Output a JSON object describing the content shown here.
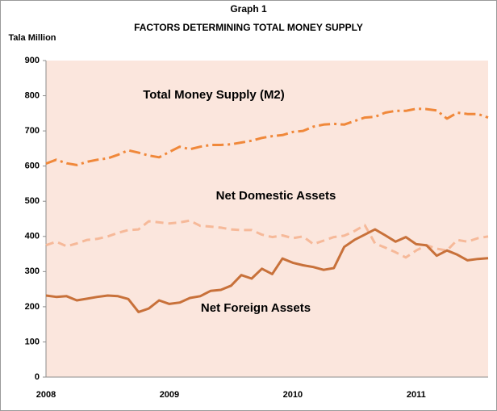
{
  "chart_data": {
    "type": "line",
    "title": "Graph 1",
    "subtitle": "FACTORS DETERMINING TOTAL MONEY SUPPLY",
    "y_label": "Tala Million",
    "annotations": [
      "Total Money Supply (M2)",
      "Net Domestic Assets",
      "Net Foreign Assets"
    ],
    "categories": [
      "2008",
      null,
      null,
      null,
      null,
      null,
      null,
      null,
      null,
      null,
      null,
      null,
      "2009",
      null,
      null,
      null,
      null,
      null,
      null,
      null,
      null,
      null,
      null,
      null,
      "2010",
      null,
      null,
      null,
      null,
      null,
      null,
      null,
      null,
      null,
      null,
      null,
      "2011",
      null,
      null,
      null,
      null,
      null,
      null,
      null
    ],
    "series": [
      {
        "name": "Total Money Supply (M2)",
        "color": "#f0883a",
        "line_style": "dashdot",
        "values": [
          607,
          618,
          608,
          603,
          612,
          618,
          622,
          632,
          645,
          638,
          630,
          625,
          640,
          655,
          648,
          655,
          660,
          660,
          662,
          667,
          672,
          680,
          685,
          688,
          697,
          700,
          712,
          718,
          720,
          718,
          728,
          738,
          740,
          752,
          757,
          757,
          763,
          762,
          758,
          735,
          752,
          748,
          748,
          738
        ]
      },
      {
        "name": "Net Domestic Assets",
        "color": "#f6b999",
        "line_style": "dashed",
        "values": [
          375,
          385,
          372,
          380,
          390,
          393,
          400,
          410,
          418,
          420,
          443,
          440,
          437,
          440,
          445,
          430,
          428,
          425,
          420,
          418,
          418,
          405,
          398,
          403,
          395,
          400,
          378,
          388,
          398,
          402,
          415,
          432,
          380,
          368,
          355,
          340,
          360,
          375,
          365,
          360,
          390,
          385,
          395,
          400
        ]
      },
      {
        "name": "Net Foreign Assets",
        "color": "#c8713a",
        "line_style": "solid",
        "values": [
          232,
          228,
          230,
          218,
          223,
          228,
          232,
          230,
          222,
          185,
          195,
          218,
          208,
          212,
          225,
          230,
          245,
          248,
          260,
          290,
          280,
          308,
          293,
          337,
          325,
          318,
          313,
          305,
          310,
          370,
          390,
          405,
          420,
          403,
          385,
          398,
          378,
          375,
          345,
          360,
          348,
          332,
          336,
          338
        ]
      }
    ],
    "ylim": [
      0,
      900
    ],
    "yticks": [
      0,
      100,
      200,
      300,
      400,
      500,
      600,
      700,
      800,
      900
    ],
    "background": "#fbe6dd"
  }
}
